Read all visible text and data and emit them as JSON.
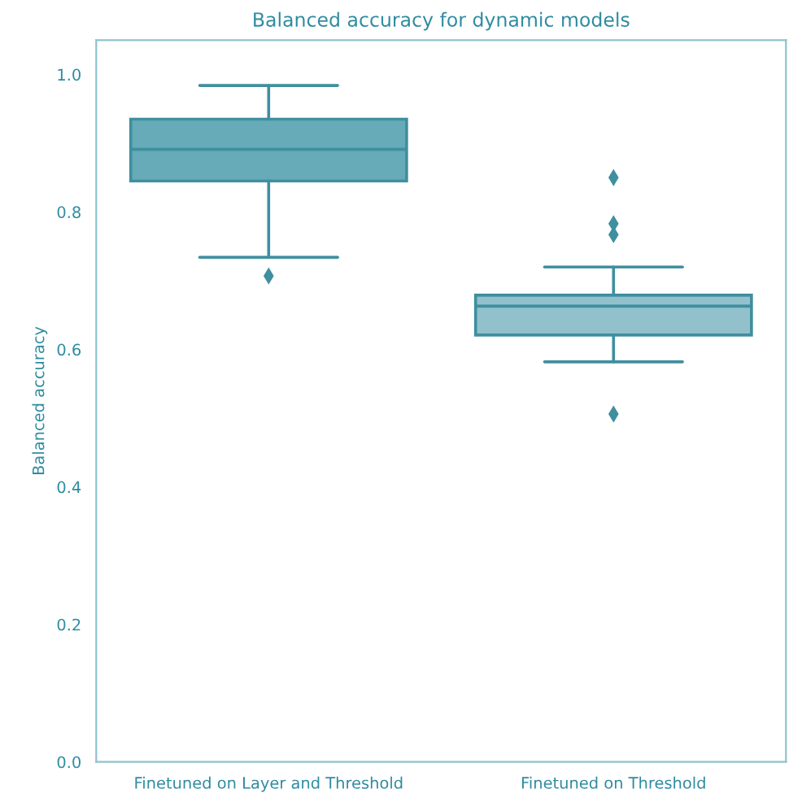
{
  "chart_data": {
    "type": "box",
    "title": "Balanced accuracy for dynamic models",
    "ylabel": "Balanced accuracy",
    "categories": [
      "Finetuned on Layer and Threshold",
      "Finetuned on Threshold"
    ],
    "colors": [
      "#67abb8",
      "#92c1cc"
    ],
    "boxes": [
      {
        "low": 0.734,
        "q1": 0.845,
        "median": 0.891,
        "q3": 0.935,
        "high": 0.984,
        "outliers": [
          0.707
        ]
      },
      {
        "low": 0.582,
        "q1": 0.621,
        "median": 0.663,
        "q3": 0.679,
        "high": 0.72,
        "outliers": [
          0.85,
          0.783,
          0.767,
          0.506
        ]
      }
    ],
    "ylim": [
      0,
      1.05
    ],
    "yticks": [
      {
        "value": 0,
        "label": "0.0"
      },
      0.2,
      0.4,
      0.6,
      0.8,
      {
        "value": 1,
        "label": "1.0"
      }
    ],
    "grid": false,
    "marker": "diamond"
  }
}
